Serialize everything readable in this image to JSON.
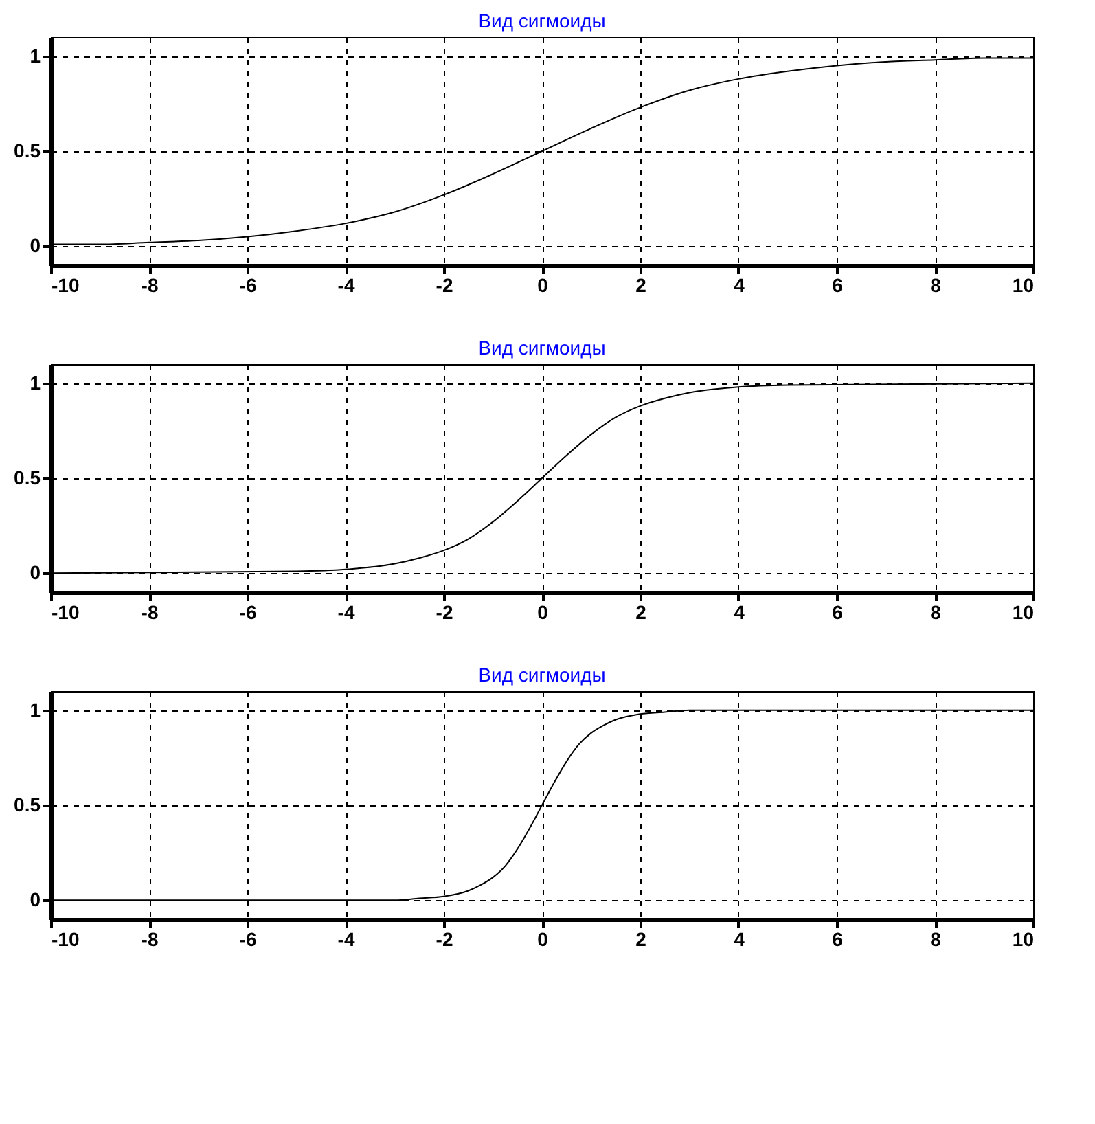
{
  "chart_data": [
    {
      "type": "line",
      "title": "Вид сигмоиды",
      "x": [
        -10,
        -9,
        -8,
        -7,
        -6,
        -5,
        -4,
        -3,
        -2,
        -1,
        0,
        1,
        2,
        3,
        4,
        5,
        6,
        7,
        8,
        9,
        10
      ],
      "series": [
        {
          "color": "#000000",
          "values": [
            0.01,
            0.01,
            0.02,
            0.03,
            0.05,
            0.08,
            0.12,
            0.18,
            0.27,
            0.38,
            0.5,
            0.62,
            0.73,
            0.82,
            0.88,
            0.92,
            0.95,
            0.97,
            0.98,
            0.99,
            0.99
          ]
        }
      ],
      "xlim": [
        -10,
        10
      ],
      "xticks": [
        -10,
        -8,
        -6,
        -4,
        -2,
        0,
        2,
        4,
        6,
        8,
        10
      ],
      "ylim": [
        -0.1,
        1.1
      ],
      "yticks": [
        0,
        0.5,
        1
      ],
      "grid": true,
      "legend": false
    },
    {
      "type": "line",
      "title": "Вид сигмоиды",
      "x": [
        -10,
        -5,
        -4,
        -3,
        -2.5,
        -2,
        -1.5,
        -1,
        -0.5,
        0,
        0.5,
        1,
        1.5,
        2,
        2.5,
        3,
        4,
        5,
        10
      ],
      "series": [
        {
          "color": "#000000",
          "values": [
            0,
            0.01,
            0.02,
            0.05,
            0.08,
            0.12,
            0.18,
            0.27,
            0.38,
            0.5,
            0.62,
            0.73,
            0.82,
            0.88,
            0.92,
            0.95,
            0.98,
            0.99,
            1
          ]
        }
      ],
      "xlim": [
        -10,
        10
      ],
      "xticks": [
        -10,
        -8,
        -6,
        -4,
        -2,
        0,
        2,
        4,
        6,
        8,
        10
      ],
      "ylim": [
        -0.1,
        1.1
      ],
      "yticks": [
        0,
        0.5,
        1
      ],
      "grid": true,
      "legend": false
    },
    {
      "type": "line",
      "title": "Вид сигмоиды",
      "x": [
        -10,
        -3,
        -2.5,
        -2,
        -1.5,
        -1.25,
        -1,
        -0.75,
        -0.5,
        -0.25,
        0,
        0.25,
        0.5,
        0.75,
        1,
        1.25,
        1.5,
        2,
        2.5,
        3,
        10
      ],
      "series": [
        {
          "color": "#000000",
          "values": [
            0,
            0,
            0.01,
            0.02,
            0.05,
            0.08,
            0.12,
            0.18,
            0.27,
            0.38,
            0.5,
            0.62,
            0.73,
            0.82,
            0.88,
            0.92,
            0.95,
            0.98,
            0.99,
            1,
            1
          ]
        }
      ],
      "xlim": [
        -10,
        10
      ],
      "xticks": [
        -10,
        -8,
        -6,
        -4,
        -2,
        0,
        2,
        4,
        6,
        8,
        10
      ],
      "ylim": [
        -0.1,
        1.1
      ],
      "yticks": [
        0,
        0.5,
        1
      ],
      "grid": true,
      "legend": false
    }
  ]
}
